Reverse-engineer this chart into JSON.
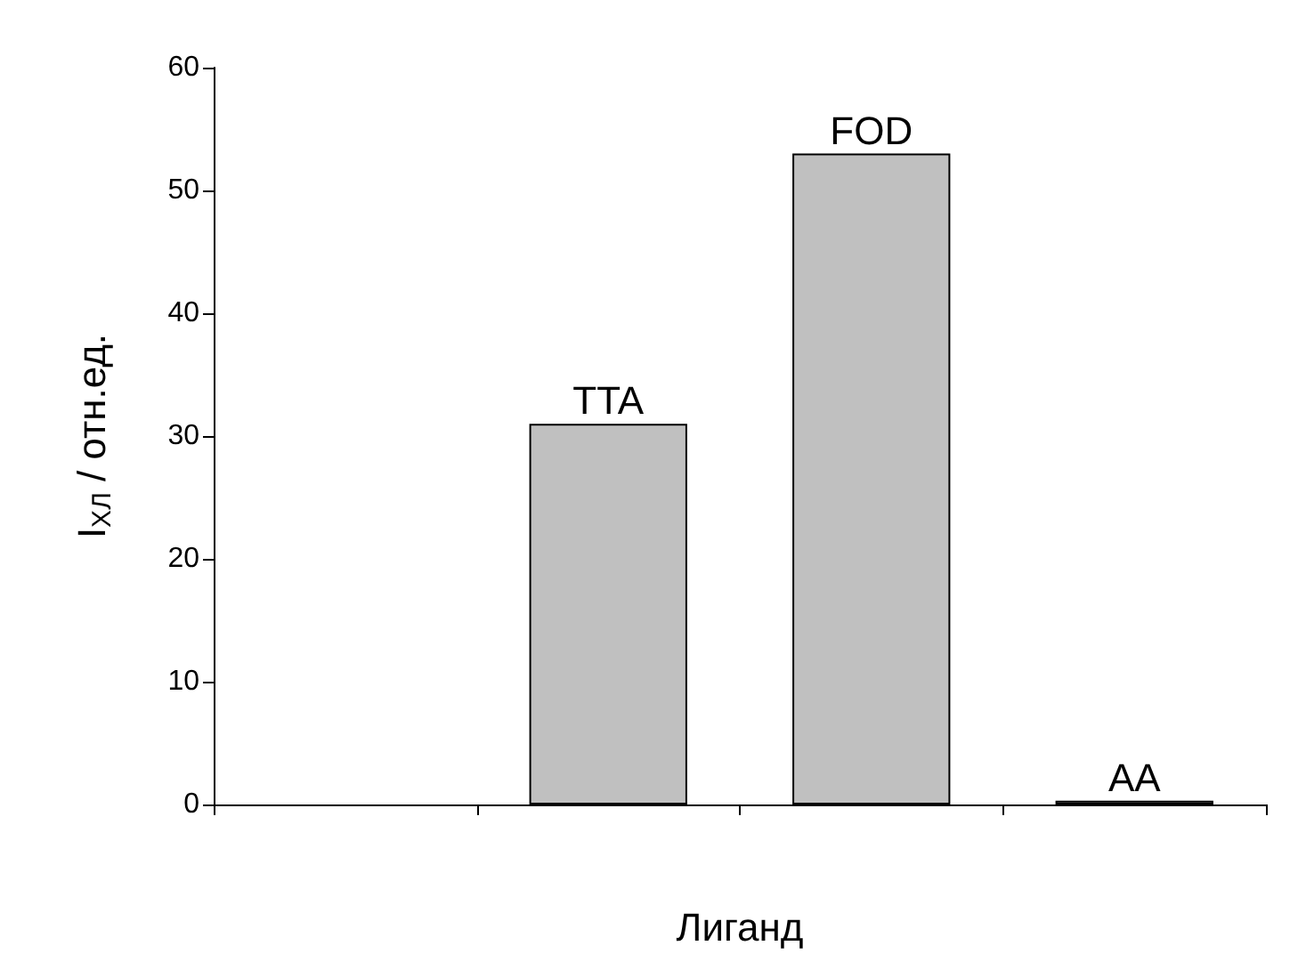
{
  "chart_data": {
    "type": "bar",
    "xlabel": "Лиганд",
    "ylabel": "I$_{ХЛ}$ / отн.ед.",
    "categories": [
      null,
      "TTA",
      "FOD",
      "AA"
    ],
    "values": [
      null,
      31,
      53,
      0.3
    ],
    "color": "#c0c0c0",
    "ylim": [
      0,
      60
    ],
    "yticks": [
      0,
      10,
      20,
      30,
      40,
      50,
      60
    ],
    "grid": false,
    "tick_labels": "y"
  }
}
